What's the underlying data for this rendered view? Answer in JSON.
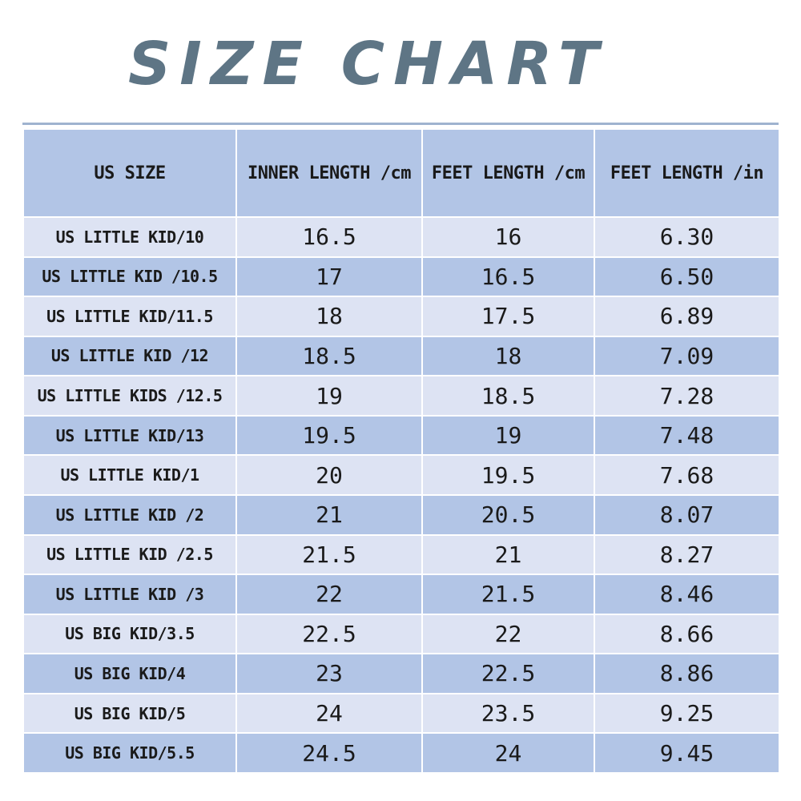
{
  "title": "SIZE CHART",
  "colors": {
    "title": "#5e7585",
    "header_bg": "#b2c5e6",
    "row_light": "#dde3f3",
    "row_dark": "#b2c5e6"
  },
  "table": {
    "headers": [
      "US SIZE",
      "INNER LENGTH /cm",
      "FEET LENGTH /cm",
      "FEET LENGTH /in"
    ],
    "rows": [
      [
        "US LITTLE KID/10",
        "16.5",
        "16",
        "6.30"
      ],
      [
        "US LITTLE KID /10.5",
        "17",
        "16.5",
        "6.50"
      ],
      [
        "US LITTLE KID/11.5",
        "18",
        "17.5",
        "6.89"
      ],
      [
        "US LITTLE KID /12",
        "18.5",
        "18",
        "7.09"
      ],
      [
        "US LITTLE KIDS /12.5",
        "19",
        "18.5",
        "7.28"
      ],
      [
        "US LITTLE KID/13",
        "19.5",
        "19",
        "7.48"
      ],
      [
        "US LITTLE KID/1",
        "20",
        "19.5",
        "7.68"
      ],
      [
        "US LITTLE KID /2",
        "21",
        "20.5",
        "8.07"
      ],
      [
        "US LITTLE KID /2.5",
        "21.5",
        "21",
        "8.27"
      ],
      [
        "US LITTLE KID /3",
        "22",
        "21.5",
        "8.46"
      ],
      [
        "US BIG KID/3.5",
        "22.5",
        "22",
        "8.66"
      ],
      [
        "US BIG KID/4",
        "23",
        "22.5",
        "8.86"
      ],
      [
        "US BIG KID/5",
        "24",
        "23.5",
        "9.25"
      ],
      [
        "US BIG KID/5.5",
        "24.5",
        "24",
        "9.45"
      ]
    ]
  }
}
